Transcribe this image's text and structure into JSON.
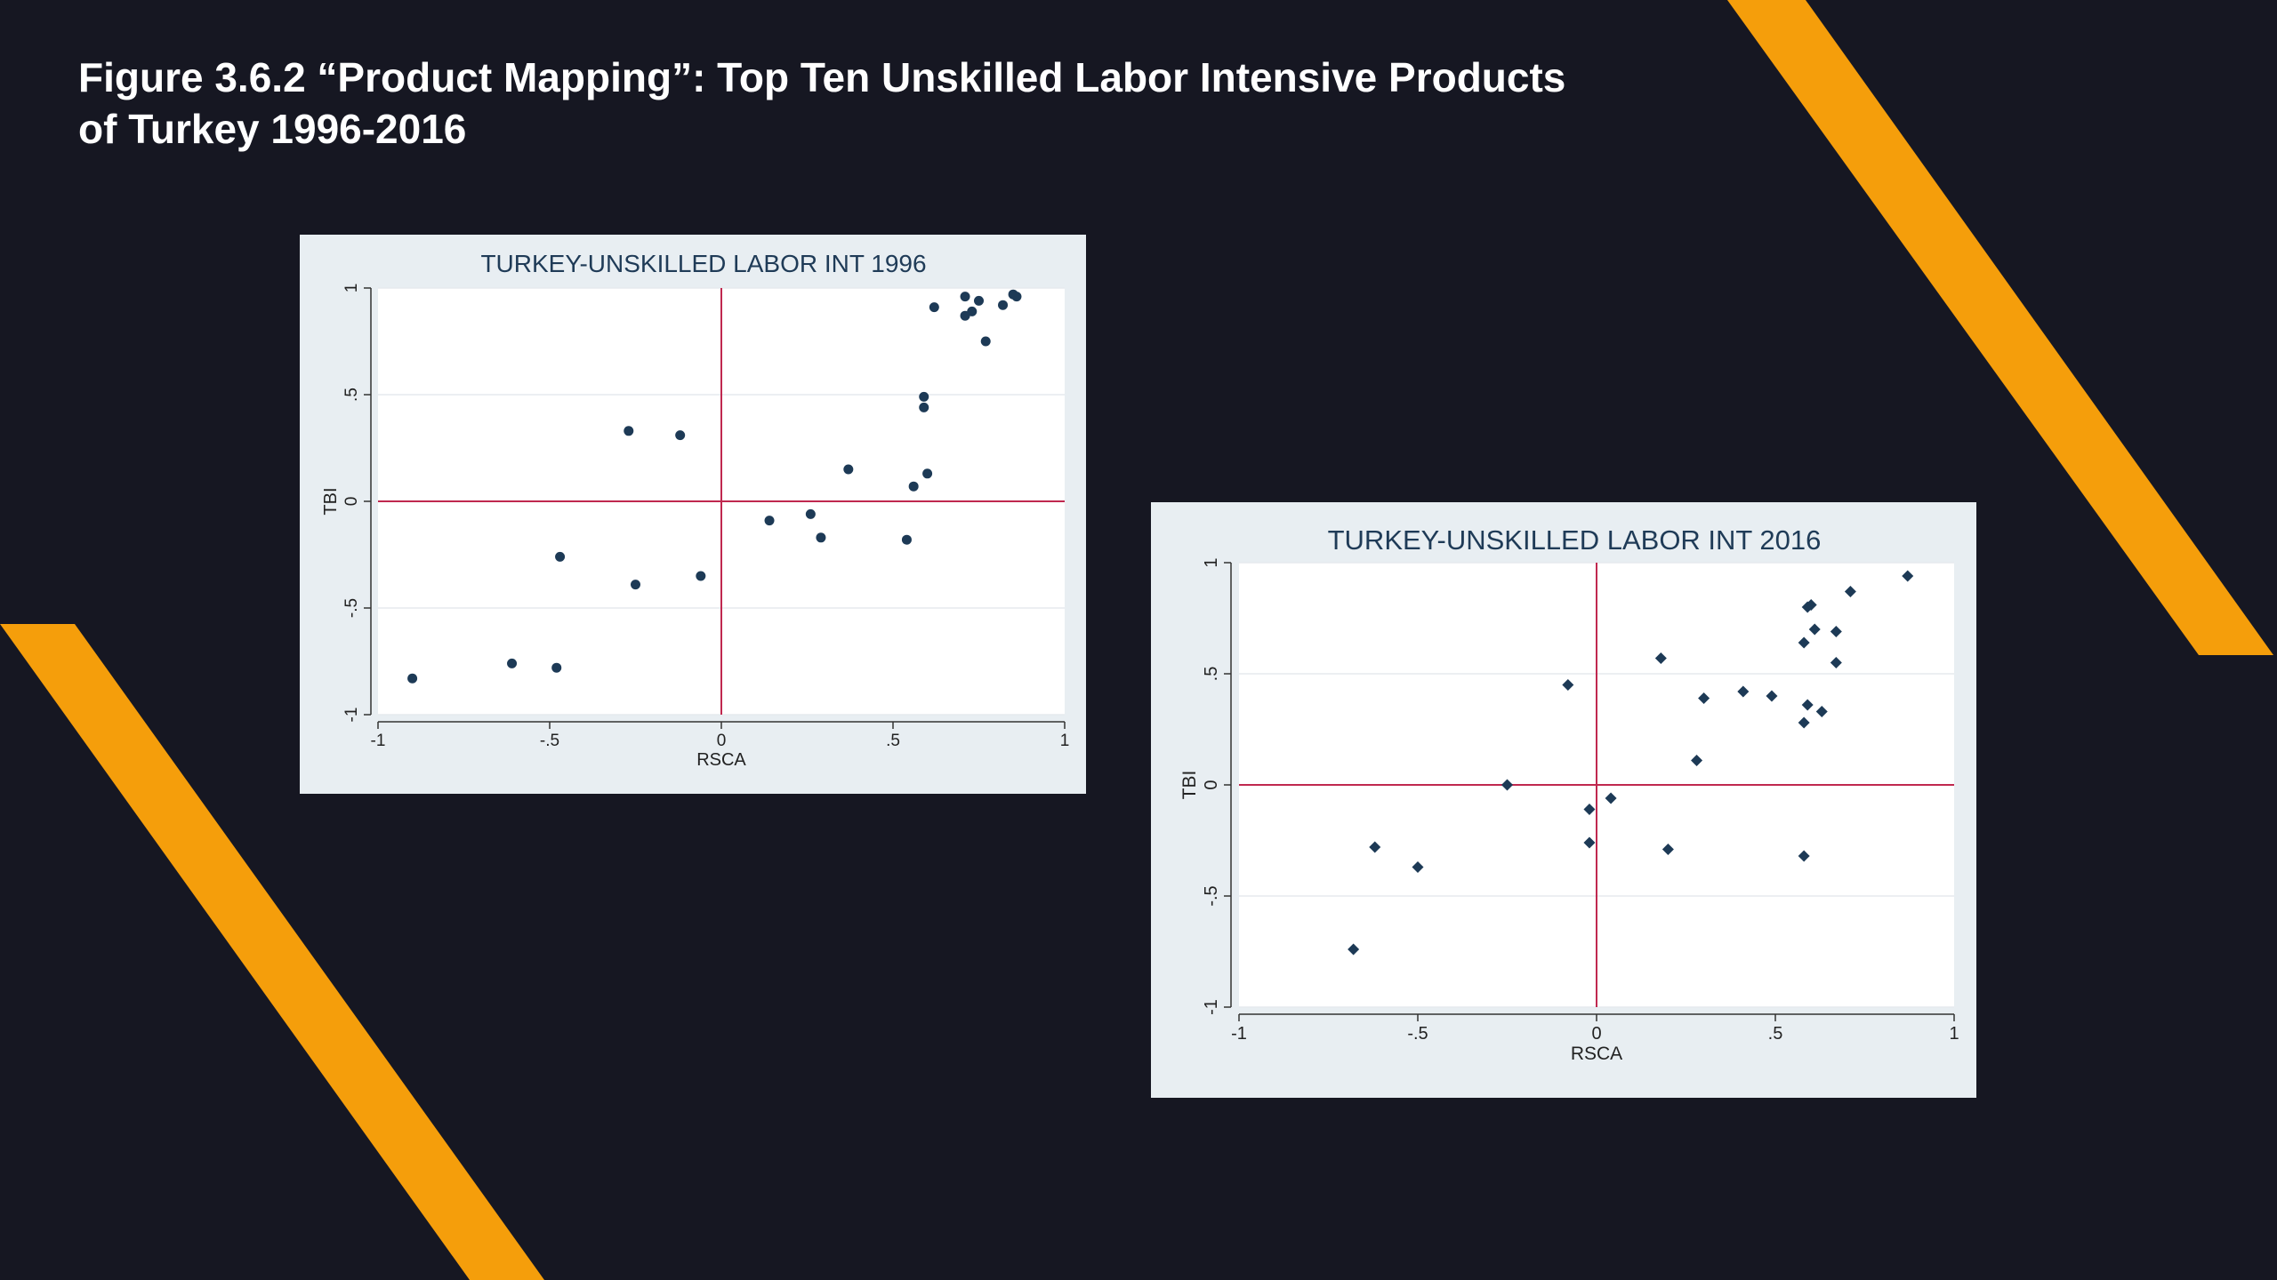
{
  "slide": {
    "title_line1": "Figure 3.6.2 “Product Mapping”: Top Ten Unskilled Labor Intensive Products",
    "title_line2": "of Turkey 1996-2016",
    "background_color": "#161722",
    "accent_color": "#f59e0b"
  },
  "chart_data": [
    {
      "id": "1996",
      "type": "scatter",
      "title": "TURKEY-UNSKILLED LABOR INT 1996",
      "xlabel": "RSCA",
      "ylabel": "TBI",
      "xlim": [
        -1,
        1
      ],
      "ylim": [
        -1,
        1
      ],
      "xticks": [
        "-1",
        "-.5",
        "0",
        ".5",
        "1"
      ],
      "yticks": [
        "-1",
        "-.5",
        "0",
        ".5",
        "1"
      ],
      "grid": true,
      "reference_lines": {
        "x": 0,
        "y": 0,
        "color": "#c0284f"
      },
      "marker": "circle",
      "marker_color": "#1d3a56",
      "points": [
        [
          -0.9,
          -0.83
        ],
        [
          -0.61,
          -0.76
        ],
        [
          -0.48,
          -0.78
        ],
        [
          -0.47,
          -0.26
        ],
        [
          -0.27,
          0.33
        ],
        [
          -0.25,
          -0.39
        ],
        [
          -0.12,
          0.31
        ],
        [
          -0.06,
          -0.35
        ],
        [
          0.14,
          -0.09
        ],
        [
          0.26,
          -0.06
        ],
        [
          0.29,
          -0.17
        ],
        [
          0.37,
          0.15
        ],
        [
          0.54,
          -0.18
        ],
        [
          0.56,
          0.07
        ],
        [
          0.59,
          0.49
        ],
        [
          0.59,
          0.44
        ],
        [
          0.6,
          0.13
        ],
        [
          0.62,
          0.91
        ],
        [
          0.71,
          0.96
        ],
        [
          0.71,
          0.87
        ],
        [
          0.73,
          0.89
        ],
        [
          0.75,
          0.94
        ],
        [
          0.77,
          0.75
        ],
        [
          0.82,
          0.92
        ],
        [
          0.85,
          0.97
        ],
        [
          0.86,
          0.96
        ]
      ]
    },
    {
      "id": "2016",
      "type": "scatter",
      "title": "TURKEY-UNSKILLED LABOR INT 2016",
      "xlabel": "RSCA",
      "ylabel": "TBI",
      "xlim": [
        -1,
        1
      ],
      "ylim": [
        -1,
        1
      ],
      "xticks": [
        "-1",
        "-.5",
        "0",
        ".5",
        "1"
      ],
      "yticks": [
        "-1",
        "-.5",
        "0",
        ".5",
        "1"
      ],
      "grid": true,
      "reference_lines": {
        "x": 0,
        "y": 0,
        "color": "#c0284f"
      },
      "marker": "diamond",
      "marker_color": "#1d3a56",
      "points": [
        [
          -0.68,
          -0.74
        ],
        [
          -0.62,
          -0.28
        ],
        [
          -0.5,
          -0.37
        ],
        [
          -0.25,
          0.0
        ],
        [
          -0.08,
          0.45
        ],
        [
          -0.02,
          -0.11
        ],
        [
          -0.02,
          -0.26
        ],
        [
          0.04,
          -0.06
        ],
        [
          0.18,
          0.57
        ],
        [
          0.2,
          -0.29
        ],
        [
          0.28,
          0.11
        ],
        [
          0.3,
          0.39
        ],
        [
          0.41,
          0.42
        ],
        [
          0.49,
          0.4
        ],
        [
          0.58,
          0.64
        ],
        [
          0.58,
          0.28
        ],
        [
          0.59,
          0.8
        ],
        [
          0.59,
          0.36
        ],
        [
          0.6,
          0.81
        ],
        [
          0.61,
          0.7
        ],
        [
          0.63,
          0.33
        ],
        [
          0.58,
          -0.32
        ],
        [
          0.67,
          0.55
        ],
        [
          0.67,
          0.69
        ],
        [
          0.71,
          0.87
        ],
        [
          0.87,
          0.94
        ]
      ]
    }
  ]
}
